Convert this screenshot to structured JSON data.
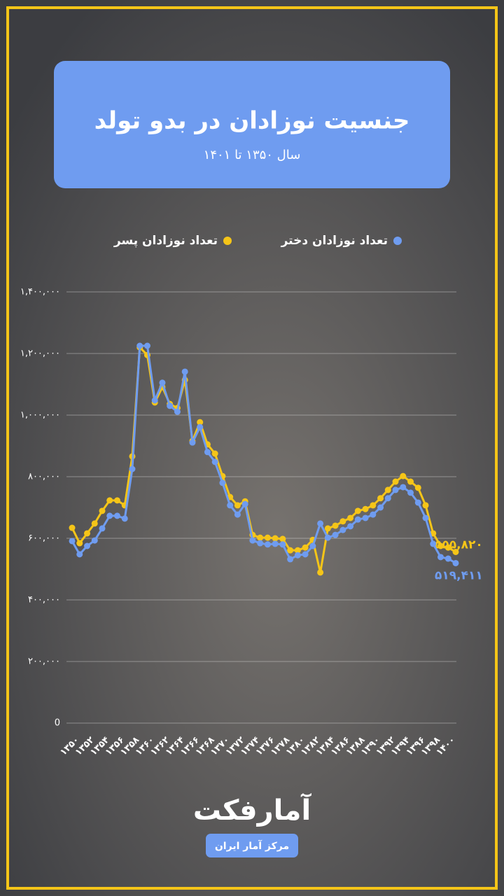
{
  "chart_data": {
    "type": "line",
    "title": "جنسیت نوزادان در بدو تولد",
    "subtitle": "سال ۱۳۵۰ تا ۱۴۰۱",
    "categories": [
      "۱۳۵۰",
      null,
      "۱۳۵۲",
      null,
      "۱۳۵۴",
      null,
      "۱۳۵۶",
      null,
      "۱۳۵۸",
      null,
      "۱۳۶۰",
      null,
      "۱۳۶۲",
      null,
      "۱۳۶۴",
      null,
      "۱۳۶۶",
      null,
      "۱۳۶۸",
      null,
      "۱۳۷۰",
      null,
      "۱۳۷۲",
      null,
      "۱۳۷۴",
      null,
      "۱۳۷۶",
      null,
      "۱۳۷۸",
      null,
      "۱۳۸۰",
      null,
      "۱۳۸۲",
      null,
      "۱۳۸۴",
      null,
      "۱۳۸۶",
      null,
      "۱۳۸۸",
      null,
      "۱۳۹۰",
      null,
      "۱۳۹۲",
      null,
      "۱۳۹۴",
      null,
      "۱۳۹۶",
      null,
      "۱۳۹۸",
      null,
      "۱۴۰۰",
      null
    ],
    "series": [
      {
        "name": "تعداد نوزادان دختر",
        "color": "#6f9cf0",
        "values": [
          591000,
          548000,
          575000,
          593000,
          632000,
          673000,
          673000,
          664000,
          825000,
          1225000,
          1225000,
          1048000,
          1105000,
          1030000,
          1011000,
          1141000,
          911000,
          961000,
          880000,
          848000,
          780000,
          707000,
          677000,
          711000,
          593000,
          584000,
          580000,
          582000,
          580000,
          532000,
          545000,
          548000,
          575000,
          648000,
          602000,
          611000,
          627000,
          639000,
          661000,
          666000,
          677000,
          700000,
          730000,
          757000,
          766000,
          748000,
          716000,
          666000,
          582000,
          539000,
          534000,
          519411
        ],
        "value_labels": [
          null,
          null,
          null,
          null,
          null,
          null,
          null,
          null,
          null,
          null,
          null,
          null,
          null,
          null,
          null,
          null,
          null,
          null,
          null,
          null,
          null,
          null,
          null,
          null,
          null,
          null,
          null,
          null,
          null,
          null,
          null,
          null,
          null,
          null,
          null,
          null,
          null,
          null,
          null,
          null,
          null,
          null,
          null,
          null,
          null,
          null,
          null,
          null,
          null,
          null,
          null,
          "۵۱۹,۴۱۱"
        ]
      },
      {
        "name": "تعداد نوزادان پسر",
        "color": "#f5c518",
        "values": [
          634000,
          584000,
          616000,
          648000,
          689000,
          723000,
          723000,
          707000,
          866000,
          1220000,
          1195000,
          1041000,
          1091000,
          1036000,
          1023000,
          1114000,
          916000,
          977000,
          905000,
          875000,
          802000,
          734000,
          707000,
          720000,
          611000,
          602000,
          602000,
          600000,
          598000,
          561000,
          561000,
          570000,
          595000,
          489000,
          632000,
          641000,
          655000,
          666000,
          689000,
          695000,
          707000,
          730000,
          757000,
          784000,
          802000,
          784000,
          764000,
          707000,
          616000,
          575000,
          570000,
          555820
        ],
        "value_labels": [
          null,
          null,
          null,
          null,
          null,
          null,
          null,
          null,
          null,
          null,
          null,
          null,
          null,
          null,
          null,
          null,
          null,
          null,
          null,
          null,
          null,
          null,
          null,
          null,
          null,
          null,
          null,
          null,
          null,
          null,
          null,
          null,
          null,
          null,
          null,
          null,
          null,
          null,
          null,
          null,
          null,
          null,
          null,
          null,
          null,
          null,
          null,
          null,
          null,
          null,
          null,
          "۵۵۵,۸۲۰"
        ]
      }
    ],
    "ylim": [
      0,
      1400000
    ],
    "yticks": [
      0,
      {
        "value": 200000,
        "label": "۲۰۰,۰۰۰"
      },
      {
        "value": 400000,
        "label": "۴۰۰,۰۰۰"
      },
      {
        "value": 600000,
        "label": "۶۰۰,۰۰۰"
      },
      {
        "value": 800000,
        "label": "۸۰۰,۰۰۰"
      },
      {
        "value": 1000000,
        "label": "۱,۰۰۰,۰۰۰"
      },
      {
        "value": 1200000,
        "label": "۱,۲۰۰,۰۰۰"
      },
      {
        "value": 1400000,
        "label": "۱,۴۰۰,۰۰۰"
      }
    ],
    "grid": true
  },
  "logo": "آمارفکت",
  "source": "مرکز آمار ایران"
}
